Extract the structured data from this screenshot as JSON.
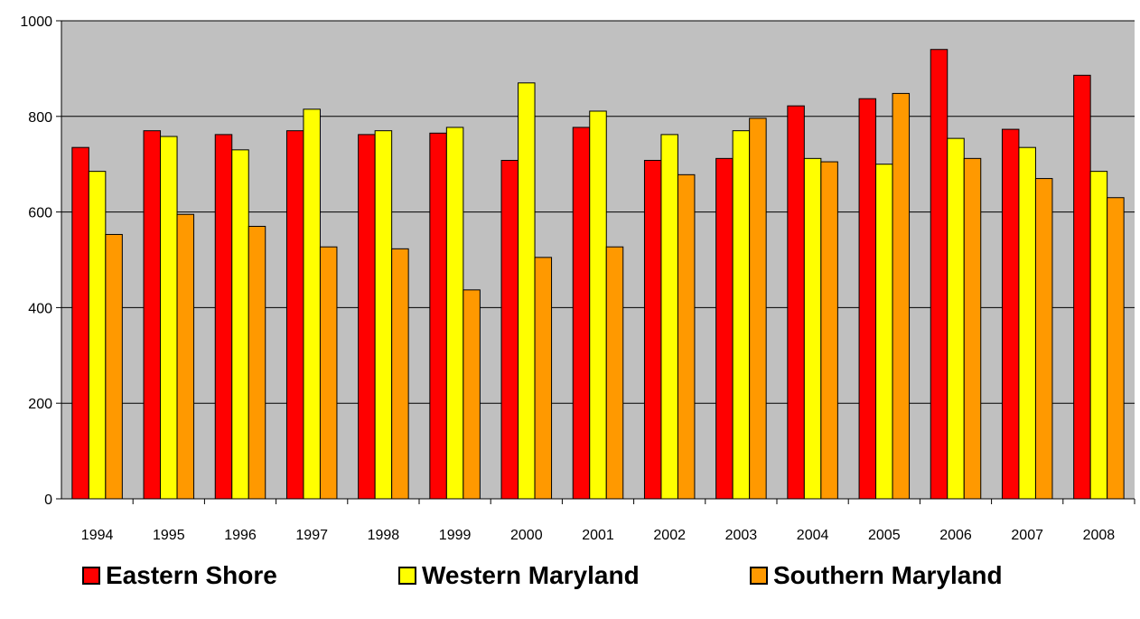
{
  "chart_data": {
    "type": "bar",
    "categories": [
      "1994",
      "1995",
      "1996",
      "1997",
      "1998",
      "1999",
      "2000",
      "2001",
      "2002",
      "2003",
      "2004",
      "2005",
      "2006",
      "2007",
      "2008"
    ],
    "series": [
      {
        "name": "Eastern Shore",
        "color": "#ff0000",
        "values": [
          735,
          770,
          762,
          770,
          762,
          765,
          708,
          777,
          708,
          712,
          822,
          837,
          940,
          773,
          886
        ]
      },
      {
        "name": "Western Maryland",
        "color": "#ffff00",
        "values": [
          685,
          758,
          730,
          815,
          770,
          777,
          870,
          811,
          762,
          770,
          712,
          700,
          754,
          735,
          685
        ]
      },
      {
        "name": "Southern Maryland",
        "color": "#ff9900",
        "values": [
          553,
          595,
          570,
          527,
          523,
          437,
          505,
          527,
          678,
          796,
          705,
          848,
          712,
          670,
          630
        ]
      }
    ],
    "ylim": [
      0,
      1000
    ],
    "yticks": [
      0,
      200,
      400,
      600,
      800,
      1000
    ],
    "grid": true,
    "plot_background": "#c0c0c0",
    "legend_position": "bottom",
    "title": "",
    "xlabel": "",
    "ylabel": ""
  }
}
